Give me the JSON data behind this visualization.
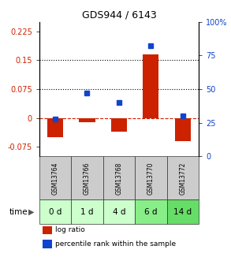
{
  "title": "GDS944 / 6143",
  "samples": [
    "GSM13764",
    "GSM13766",
    "GSM13768",
    "GSM13770",
    "GSM13772"
  ],
  "time_labels": [
    "0 d",
    "1 d",
    "4 d",
    "6 d",
    "14 d"
  ],
  "log_ratio": [
    -0.05,
    -0.01,
    -0.035,
    0.165,
    -0.06
  ],
  "percentile_rank": [
    0.28,
    0.47,
    0.4,
    0.82,
    0.3
  ],
  "left_ylim": [
    -0.1,
    0.25
  ],
  "right_ylim": [
    0.0,
    1.0
  ],
  "left_yticks": [
    -0.075,
    0.0,
    0.075,
    0.15,
    0.225
  ],
  "left_yticklabels": [
    "-0.075",
    "0",
    "0.075",
    "0.15",
    "0.225"
  ],
  "right_yticks": [
    0.0,
    0.25,
    0.5,
    0.75,
    1.0
  ],
  "right_yticklabels": [
    "0",
    "25",
    "50",
    "75",
    "100%"
  ],
  "hlines": [
    0.075,
    0.15
  ],
  "red_color": "#cc2200",
  "blue_color": "#1144cc",
  "bar_width": 0.5,
  "bg_color": "#ffffff",
  "plot_bg": "#ffffff",
  "time_row_colors": [
    "#ccffcc",
    "#ccffcc",
    "#ccffcc",
    "#88ee88",
    "#66dd66"
  ],
  "sample_row_color": "#cccccc",
  "legend_red": "log ratio",
  "legend_blue": "percentile rank within the sample",
  "title_fontsize": 9,
  "tick_fontsize": 7,
  "sample_fontsize": 5.5,
  "time_fontsize": 7.5,
  "legend_fontsize": 6.5
}
